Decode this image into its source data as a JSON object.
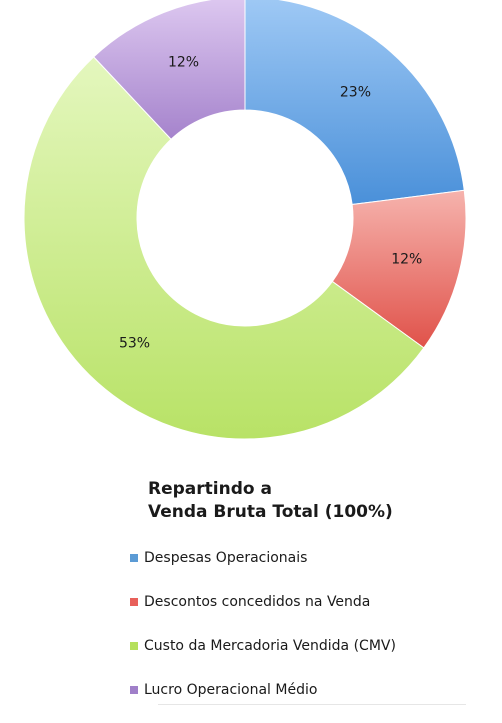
{
  "chart_data": {
    "type": "pie",
    "donut": true,
    "title_lines": [
      "Repartindo a",
      "Venda Bruta Total (100%)"
    ],
    "slices": [
      {
        "label": "Despesas Operacionais",
        "value": 23,
        "display": "23%",
        "color_top": "#9fc9f5",
        "color_bottom": "#4a90d9",
        "legend_color": "#5b9bd5"
      },
      {
        "label": "Descontos concedidos na Venda",
        "value": 12,
        "display": "12%",
        "color_top": "#f6b3ad",
        "color_bottom": "#e0524a",
        "legend_color": "#e8605a"
      },
      {
        "label": "Custo da Mercadoria Vendida (CMV)",
        "value": 53,
        "display": "53%",
        "color_top": "#e4f7be",
        "color_bottom": "#b8e266",
        "legend_color": "#b5e05c"
      },
      {
        "label": "Lucro Operacional Médio",
        "value": 12,
        "display": "12%",
        "color_top": "#ddc8f0",
        "color_bottom": "#a583cc",
        "legend_color": "#a07fc9"
      }
    ],
    "legend_position": "below"
  }
}
